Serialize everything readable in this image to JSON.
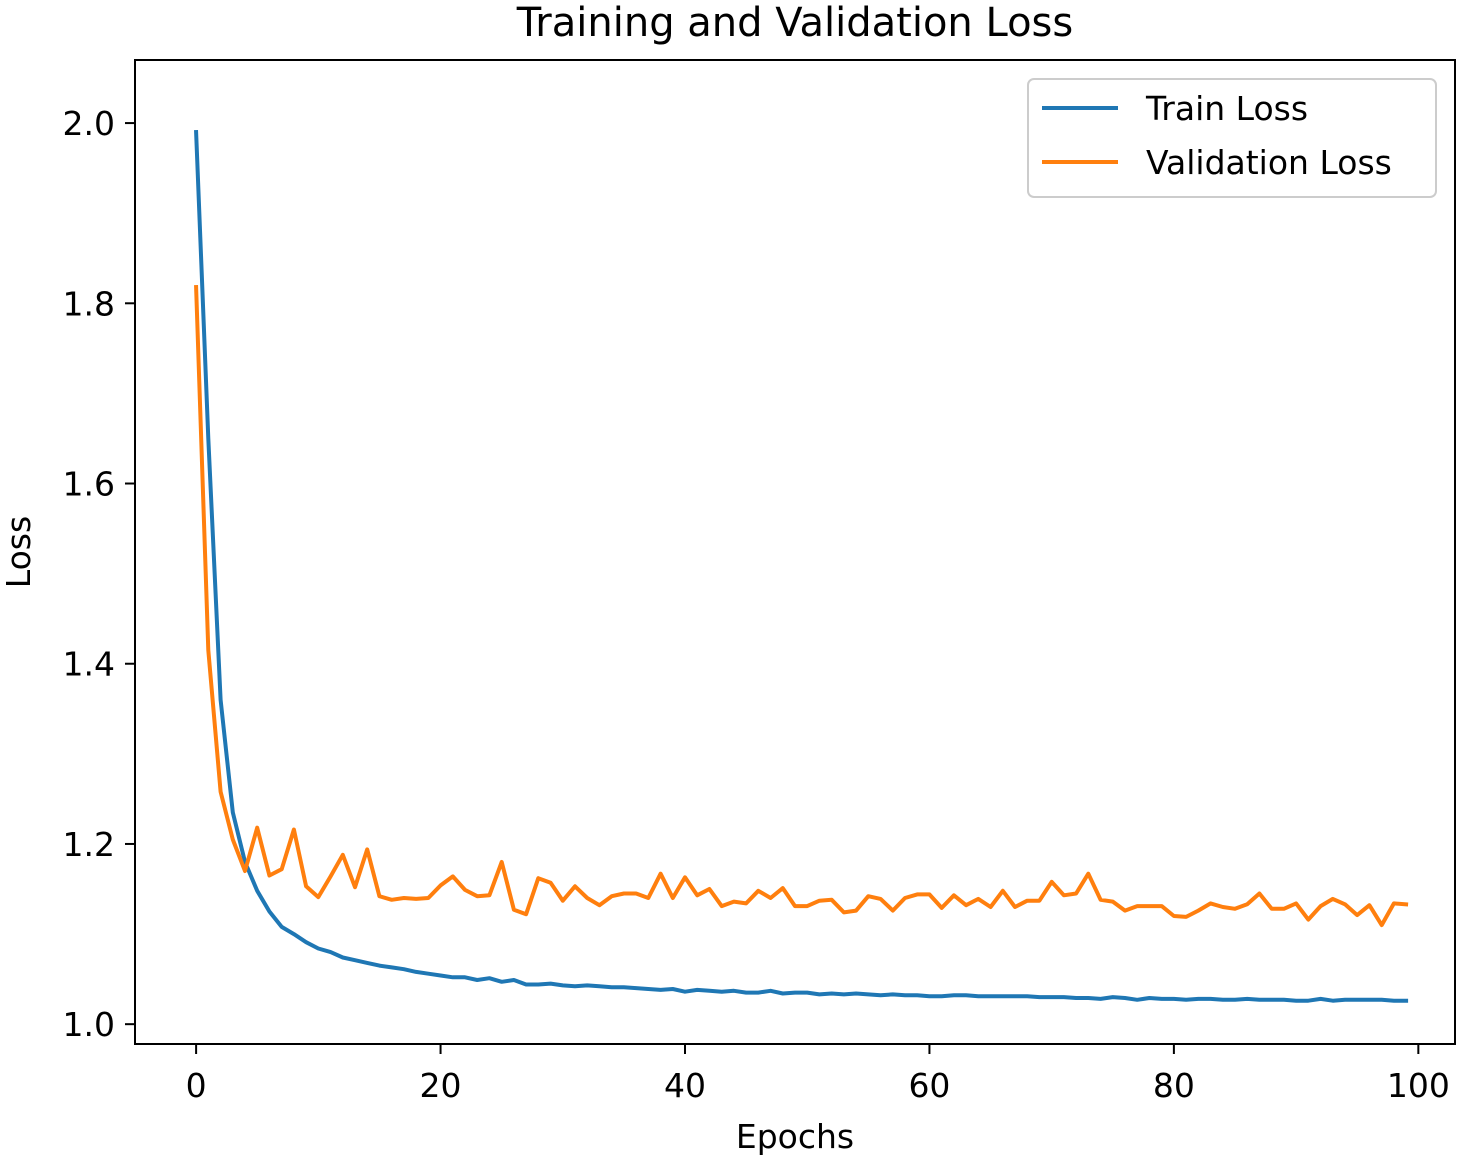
{
  "chart_data": {
    "type": "line",
    "title": "Training and Validation Loss",
    "xlabel": "Epochs",
    "ylabel": "Loss",
    "xlim": [
      -5,
      103
    ],
    "ylim": [
      0.978,
      2.07
    ],
    "xticks": [
      0,
      20,
      40,
      60,
      80,
      100
    ],
    "yticks": [
      1.0,
      1.2,
      1.4,
      1.6,
      1.8,
      2.0
    ],
    "xtick_labels": [
      "0",
      "20",
      "40",
      "60",
      "80",
      "100"
    ],
    "ytick_labels": [
      "1.0",
      "1.2",
      "1.4",
      "1.6",
      "1.8",
      "2.0"
    ],
    "grid": false,
    "legend_position": "top-right",
    "series": [
      {
        "name": "Train Loss",
        "color": "#1f77b4",
        "x": [
          0,
          1,
          2,
          3,
          4,
          5,
          6,
          7,
          8,
          9,
          10,
          11,
          12,
          13,
          14,
          15,
          16,
          17,
          18,
          19,
          20,
          21,
          22,
          23,
          24,
          25,
          26,
          27,
          28,
          29,
          30,
          31,
          32,
          33,
          34,
          35,
          36,
          37,
          38,
          39,
          40,
          41,
          42,
          43,
          44,
          45,
          46,
          47,
          48,
          49,
          50,
          51,
          52,
          53,
          54,
          55,
          56,
          57,
          58,
          59,
          60,
          61,
          62,
          63,
          64,
          65,
          66,
          67,
          68,
          69,
          70,
          71,
          72,
          73,
          74,
          75,
          76,
          77,
          78,
          79,
          80,
          81,
          82,
          83,
          84,
          85,
          86,
          87,
          88,
          89,
          90,
          91,
          92,
          93,
          94,
          95,
          96,
          97,
          98,
          99
        ],
        "values": [
          1.99,
          1.65,
          1.36,
          1.235,
          1.18,
          1.148,
          1.125,
          1.108,
          1.1,
          1.091,
          1.084,
          1.08,
          1.074,
          1.071,
          1.068,
          1.065,
          1.063,
          1.061,
          1.058,
          1.056,
          1.054,
          1.052,
          1.052,
          1.049,
          1.051,
          1.047,
          1.049,
          1.044,
          1.044,
          1.045,
          1.043,
          1.042,
          1.043,
          1.042,
          1.041,
          1.041,
          1.04,
          1.039,
          1.038,
          1.039,
          1.036,
          1.038,
          1.037,
          1.036,
          1.037,
          1.035,
          1.035,
          1.037,
          1.034,
          1.035,
          1.035,
          1.033,
          1.034,
          1.033,
          1.034,
          1.033,
          1.032,
          1.033,
          1.032,
          1.032,
          1.031,
          1.031,
          1.032,
          1.032,
          1.031,
          1.031,
          1.031,
          1.031,
          1.031,
          1.03,
          1.03,
          1.03,
          1.029,
          1.029,
          1.028,
          1.03,
          1.029,
          1.027,
          1.029,
          1.028,
          1.028,
          1.027,
          1.028,
          1.028,
          1.027,
          1.027,
          1.028,
          1.027,
          1.027,
          1.027,
          1.026,
          1.026,
          1.028,
          1.026,
          1.027,
          1.027,
          1.027,
          1.027,
          1.026,
          1.026
        ]
      },
      {
        "name": "Validation Loss",
        "color": "#ff7f0e",
        "x": [
          0,
          1,
          2,
          3,
          4,
          5,
          6,
          7,
          8,
          9,
          10,
          11,
          12,
          13,
          14,
          15,
          16,
          17,
          18,
          19,
          20,
          21,
          22,
          23,
          24,
          25,
          26,
          27,
          28,
          29,
          30,
          31,
          32,
          33,
          34,
          35,
          36,
          37,
          38,
          39,
          40,
          41,
          42,
          43,
          44,
          45,
          46,
          47,
          48,
          49,
          50,
          51,
          52,
          53,
          54,
          55,
          56,
          57,
          58,
          59,
          60,
          61,
          62,
          63,
          64,
          65,
          66,
          67,
          68,
          69,
          70,
          71,
          72,
          73,
          74,
          75,
          76,
          77,
          78,
          79,
          80,
          81,
          82,
          83,
          84,
          85,
          86,
          87,
          88,
          89,
          90,
          91,
          92,
          93,
          94,
          95,
          96,
          97,
          98,
          99
        ],
        "values": [
          1.818,
          1.415,
          1.258,
          1.205,
          1.17,
          1.218,
          1.165,
          1.172,
          1.216,
          1.153,
          1.141,
          1.164,
          1.188,
          1.152,
          1.194,
          1.142,
          1.138,
          1.14,
          1.139,
          1.14,
          1.154,
          1.164,
          1.149,
          1.142,
          1.143,
          1.18,
          1.127,
          1.122,
          1.162,
          1.157,
          1.137,
          1.153,
          1.14,
          1.132,
          1.142,
          1.145,
          1.145,
          1.14,
          1.167,
          1.14,
          1.163,
          1.143,
          1.15,
          1.131,
          1.136,
          1.134,
          1.148,
          1.14,
          1.151,
          1.131,
          1.131,
          1.137,
          1.138,
          1.124,
          1.126,
          1.142,
          1.139,
          1.126,
          1.14,
          1.144,
          1.144,
          1.129,
          1.143,
          1.132,
          1.139,
          1.13,
          1.148,
          1.13,
          1.137,
          1.137,
          1.158,
          1.143,
          1.145,
          1.167,
          1.138,
          1.136,
          1.126,
          1.131,
          1.131,
          1.131,
          1.12,
          1.119,
          1.126,
          1.134,
          1.13,
          1.128,
          1.133,
          1.145,
          1.128,
          1.128,
          1.134,
          1.116,
          1.131,
          1.139,
          1.133,
          1.121,
          1.132,
          1.11,
          1.134,
          1.133
        ]
      }
    ]
  }
}
